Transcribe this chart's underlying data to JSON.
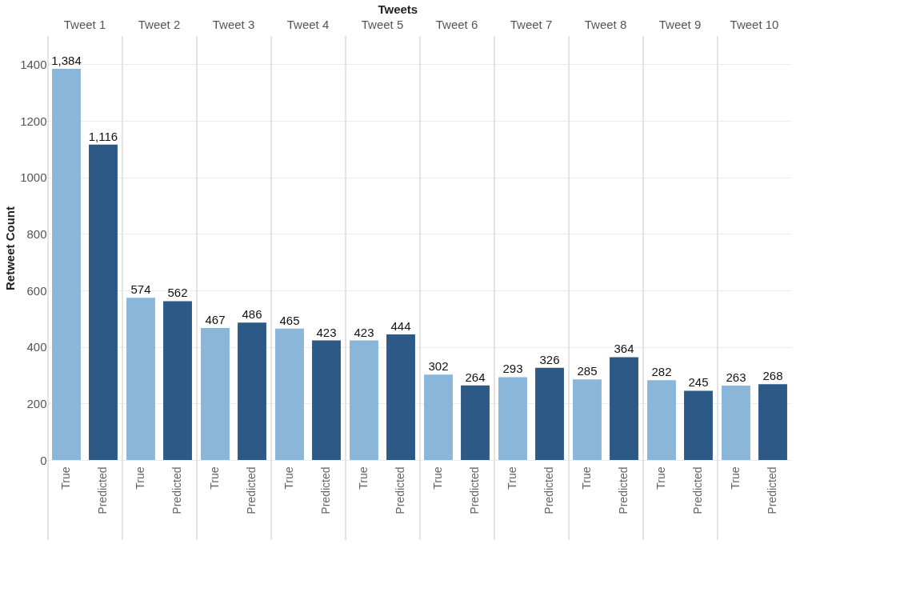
{
  "chart_data": {
    "type": "bar",
    "xlabel": "Tweets",
    "ylabel": "Retweet Count",
    "categories": [
      "Tweet 1",
      "Tweet 2",
      "Tweet 3",
      "Tweet 4",
      "Tweet 5",
      "Tweet 6",
      "Tweet 7",
      "Tweet 8",
      "Tweet 9",
      "Tweet 10"
    ],
    "series": [
      {
        "name": "True",
        "color": "#8ab6d9",
        "values": [
          1384,
          574,
          467,
          465,
          423,
          302,
          293,
          285,
          282,
          263
        ],
        "value_labels": [
          "1,384",
          "574",
          "467",
          "465",
          "423",
          "302",
          "293",
          "285",
          "282",
          "263"
        ]
      },
      {
        "name": "Predicted",
        "color": "#2c5985",
        "values": [
          1116,
          562,
          486,
          423,
          444,
          264,
          326,
          364,
          245,
          268
        ],
        "value_labels": [
          "1,116",
          "562",
          "486",
          "423",
          "444",
          "264",
          "326",
          "364",
          "245",
          "268"
        ]
      }
    ],
    "ylim": [
      0,
      1500
    ],
    "yticks": [
      0,
      200,
      400,
      600,
      800,
      1000,
      1200,
      1400
    ],
    "grid": "y",
    "legend": false
  }
}
